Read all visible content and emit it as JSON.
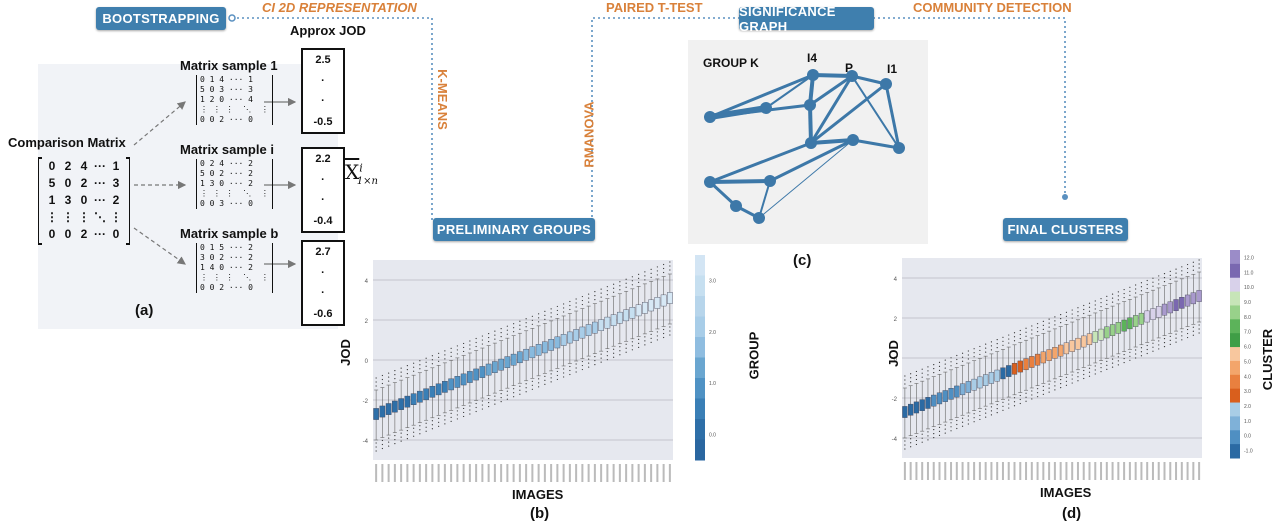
{
  "stages": {
    "bootstrapping": "BOOTSTRAPPING",
    "preliminary_groups": "PRELIMINARY GROUPS",
    "significance_graph": "SIGNIFICANCE GRAPH",
    "final_clusters": "FINAL CLUSTERS"
  },
  "connectors": {
    "ci_2d": "CI 2D REPRESENTATION",
    "kmeans": "K-MEANS",
    "paired_t": "PAIRED T-TEST",
    "rmanova": "RMANOVA",
    "community": "COMMUNITY DETECTION"
  },
  "panel_a": {
    "label": "(a)",
    "approx_jod": "Approx JOD",
    "comparison_title": "Comparison Matrix",
    "comparison_rows": [
      [
        "0",
        "2",
        "4",
        "···",
        "1"
      ],
      [
        "5",
        "0",
        "2",
        "···",
        "3"
      ],
      [
        "1",
        "3",
        "0",
        "···",
        "2"
      ],
      [
        "⋮",
        "⋮",
        "⋮",
        "⋱",
        "⋮"
      ],
      [
        "0",
        "0",
        "2",
        "···",
        "0"
      ]
    ],
    "samples": [
      {
        "title": "Matrix sample 1",
        "rows": "0 1 4 ··· 1\n5 0 3 ··· 3\n1 2 0 ··· 4\n⋮ ⋮ ⋮  ⋱  ⋮\n0 0 2 ··· 0",
        "jod": [
          "2.5",
          "·",
          "·",
          "-0.5"
        ]
      },
      {
        "title": "Matrix sample i",
        "rows": "0 2 4 ··· 2\n5 0 2 ··· 2\n1 3 0 ··· 2\n⋮ ⋮ ⋮  ⋱  ⋮\n0 0 3 ··· 0",
        "jod": [
          "2.2",
          "·",
          "·",
          "-0.4"
        ]
      },
      {
        "title": "Matrix sample b",
        "rows": "0 1 5 ··· 2\n3 0 2 ··· 2\n1 4 0 ··· 2\n⋮ ⋮ ⋮  ⋱  ⋮\n0 0 2 ··· 0",
        "jod": [
          "2.7",
          "·",
          "·",
          "-0.6"
        ]
      }
    ],
    "xbar_symbol": "X",
    "xbar_sup": "i",
    "xbar_sub": "1×n"
  },
  "panel_b": {
    "label": "(b)",
    "xlabel": "IMAGES",
    "ylabel": "JOD",
    "colorbar_label": "GROUP",
    "yticks": [
      "4",
      "2",
      "0",
      "-2",
      "-4"
    ],
    "colorbar_ticks": [
      "3.0",
      "2.0",
      "1.0",
      "0.0"
    ]
  },
  "panel_c": {
    "label": "(c)",
    "group_label": "GROUP K",
    "node_labels": [
      "I4",
      "P",
      "I1"
    ]
  },
  "panel_d": {
    "label": "(d)",
    "xlabel": "IMAGES",
    "ylabel": "JOD",
    "colorbar_label": "CLUSTER",
    "yticks": [
      "4",
      "2",
      "0",
      "-2",
      "-4"
    ],
    "colorbar_ticks": [
      "12.0",
      "11.0",
      "10.0",
      "9.0",
      "8.0",
      "7.0",
      "6.0",
      "5.0",
      "4.0",
      "3.0",
      "2.0",
      "1.0",
      "0.0",
      "-1.0"
    ]
  },
  "colors": {
    "stage_blue": "#3f7fae",
    "connector_orange": "#d9813a",
    "graph_blue": "#3d78a8"
  }
}
